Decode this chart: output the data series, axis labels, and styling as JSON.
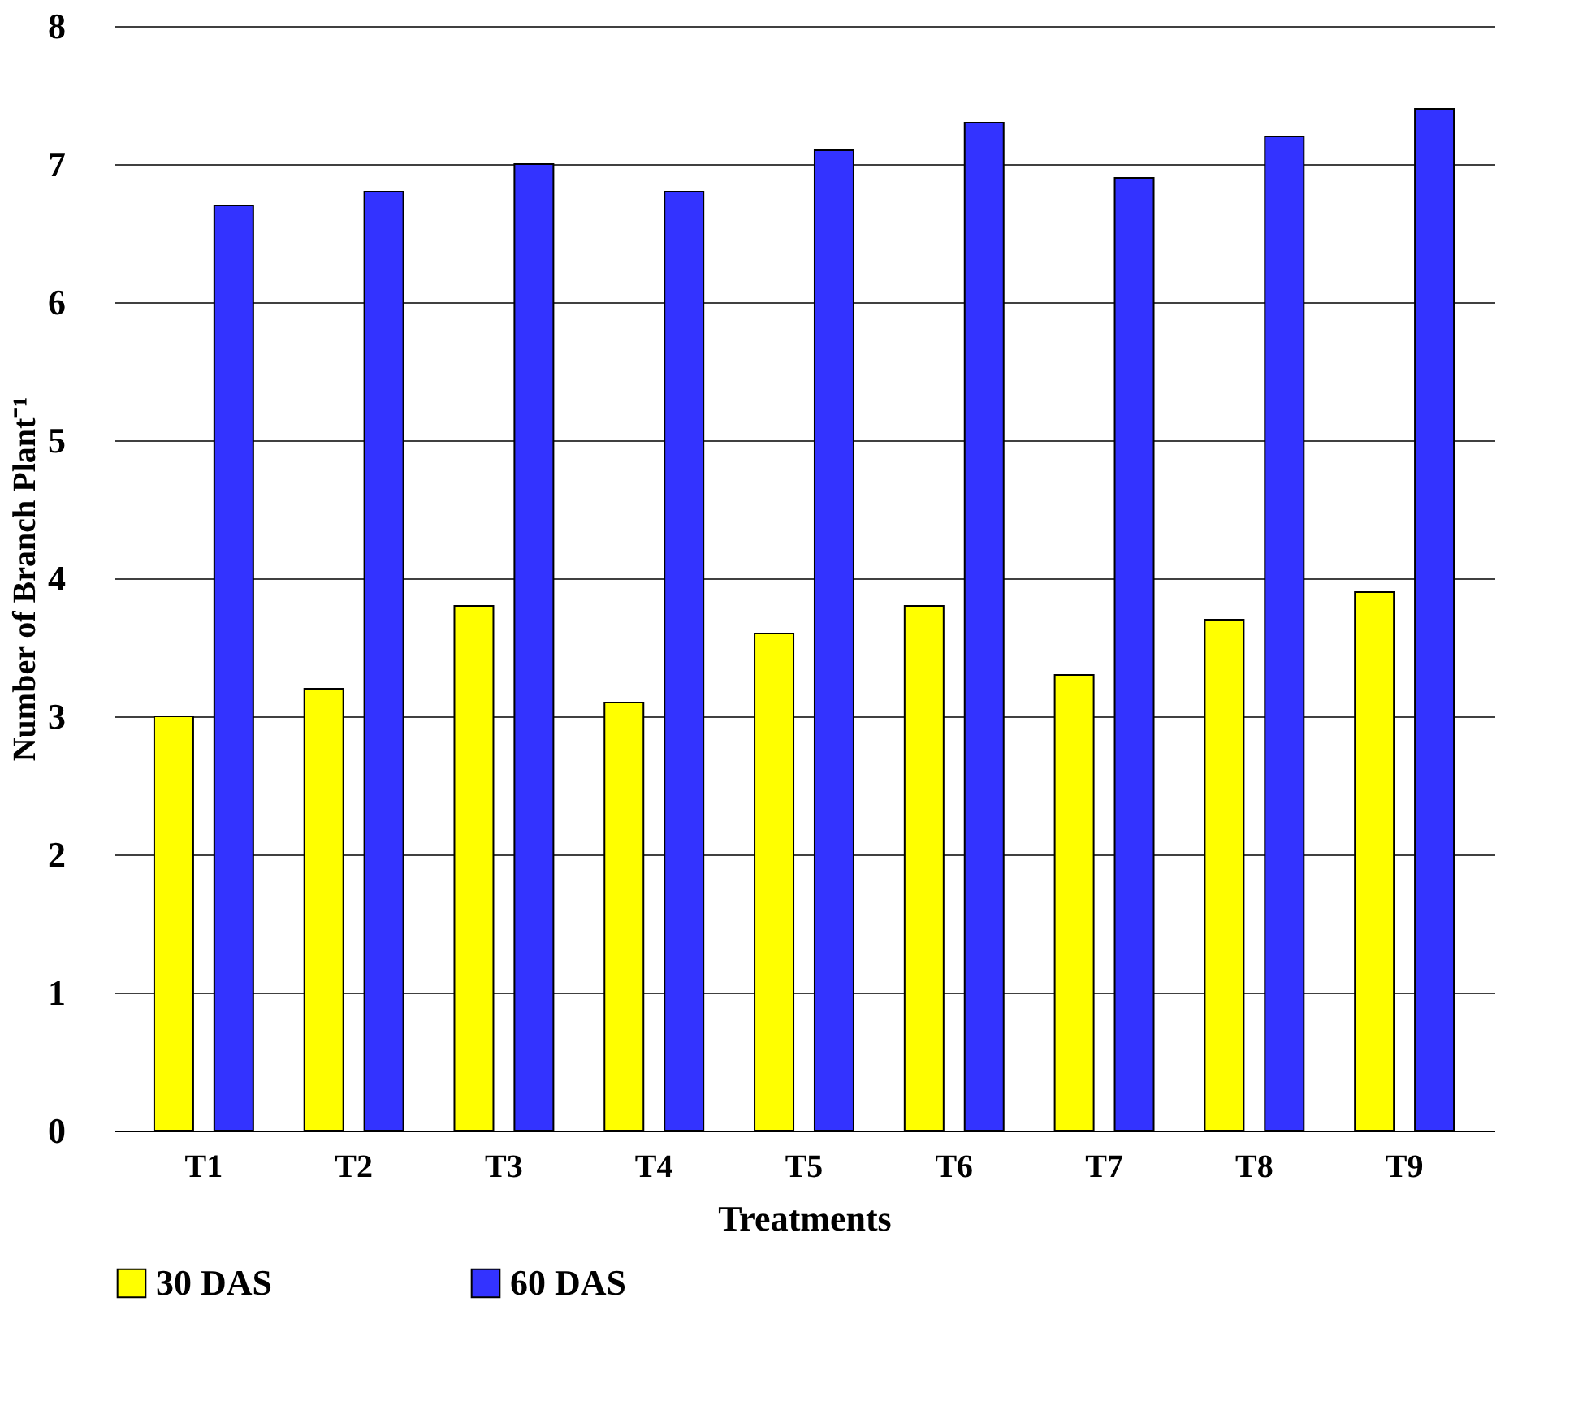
{
  "chart_data": {
    "type": "bar",
    "xlabel": "Treatments",
    "ylabel": "Number of Branch Plant⁻¹",
    "categories": [
      "T1",
      "T2",
      "T3",
      "T4",
      "T5",
      "T6",
      "T7",
      "T8",
      "T9"
    ],
    "series": [
      {
        "name": "30 DAS",
        "color": "#ffff00",
        "values": [
          3.0,
          3.2,
          3.8,
          3.1,
          3.6,
          3.8,
          3.3,
          3.7,
          3.9
        ]
      },
      {
        "name": "60 DAS",
        "color": "#3333ff",
        "values": [
          6.7,
          6.8,
          7.0,
          6.8,
          7.1,
          7.3,
          6.9,
          7.2,
          7.4
        ]
      }
    ],
    "ylim": [
      0,
      8
    ],
    "yticks": [
      0,
      1,
      2,
      3,
      4,
      5,
      6,
      7,
      8
    ],
    "grid": "y",
    "legend": "bottom"
  }
}
